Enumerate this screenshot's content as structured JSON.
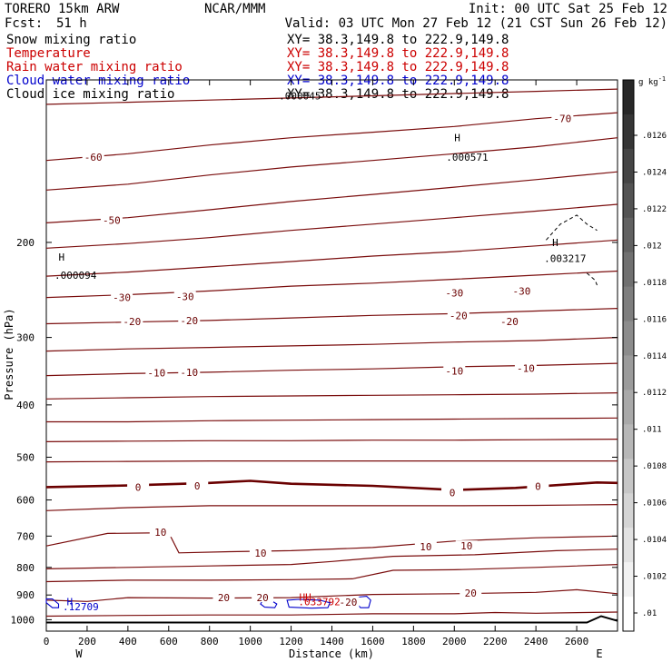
{
  "header": {
    "model": "TORERO   15km ARW",
    "fcst_label": "Fcst:",
    "fcst_value": "51 h",
    "org": "NCAR/MMM",
    "init": "Init: 00 UTC Sat 25 Feb 12",
    "valid": "Valid: 03 UTC Mon 27 Feb 12 (21 CST Sun 26 Feb 12)"
  },
  "legend": [
    {
      "name": "Snow mixing ratio",
      "color": "#000000",
      "xy": "XY=  38.3,149.8 to 222.9,149.8"
    },
    {
      "name": "Temperature",
      "color": "#cc0000",
      "xy": "XY=  38.3,149.8 to 222.9,149.8"
    },
    {
      "name": "Rain water mixing ratio",
      "color": "#cc0000",
      "xy": "XY=  38.3,149.8 to 222.9,149.8"
    },
    {
      "name": "Cloud water mixing ratio",
      "color": "#0000cc",
      "xy": "XY=  38.3,149.8 to 222.9,149.8"
    },
    {
      "name": "Cloud ice mixing ratio",
      "color": "#000000",
      "xy": "XY=  38.3,149.8 to 222.9,149.8"
    }
  ],
  "colors": {
    "temperature": "#7a0d0d",
    "zero_isotherm": "#6a0000",
    "cloud_water": "#0000cc",
    "terrain": "#000000"
  },
  "chart_data": {
    "type": "line",
    "xlabel": "Distance (km)",
    "ylabel": "Pressure (hPa)",
    "xlim": [
      0,
      2800
    ],
    "ylim": [
      1050,
      100
    ],
    "y_log": true,
    "x_ticks": [
      0,
      200,
      400,
      600,
      800,
      1000,
      1200,
      1400,
      1600,
      1800,
      2000,
      2200,
      2400,
      2600
    ],
    "y_ticks": [
      200,
      300,
      400,
      500,
      600,
      700,
      800,
      900,
      1000
    ],
    "x_end_labels": {
      "left": "W",
      "right": "E"
    },
    "colorbar": {
      "unit": "g kg",
      "unit_sup": "-1",
      "ticks": [
        ".0126",
        ".0124",
        ".0122",
        ".012",
        ".0118",
        ".0116",
        ".0114",
        ".0112",
        ".011",
        ".0108",
        ".0106",
        ".0104",
        ".0102",
        ".01"
      ]
    },
    "temperature_isotherms": [
      {
        "x": [
          0,
          400,
          800,
          1200,
          1600,
          2000,
          2400,
          2800
        ],
        "p": [
          111,
          110,
          109,
          108,
          107,
          106,
          105,
          104
        ]
      },
      {
        "x": [
          0,
          400,
          800,
          1200,
          1600,
          2000,
          2400,
          2800
        ],
        "p": [
          141,
          137,
          132,
          128,
          125,
          122,
          118,
          115
        ]
      },
      {
        "x": [
          0,
          400,
          800,
          1200,
          1600,
          2000,
          2400,
          2800
        ],
        "p": [
          160,
          156,
          150,
          145,
          141,
          137,
          133,
          128
        ]
      },
      {
        "x": [
          0,
          400,
          800,
          1200,
          1600,
          2000,
          2400,
          2800
        ],
        "p": [
          184,
          180,
          174,
          168,
          163,
          158,
          153,
          148
        ]
      },
      {
        "x": [
          0,
          400,
          800,
          1200,
          1600,
          2000,
          2400,
          2800
        ],
        "p": [
          205,
          201,
          196,
          190,
          185,
          180,
          175,
          170
        ]
      },
      {
        "x": [
          0,
          400,
          800,
          1200,
          1600,
          2000,
          2400,
          2800
        ],
        "p": [
          231,
          227,
          222,
          217,
          212,
          208,
          203,
          198
        ]
      },
      {
        "x": [
          0,
          400,
          800,
          1200,
          1600,
          2000,
          2400,
          2800
        ],
        "p": [
          253,
          250,
          246,
          241,
          238,
          234,
          230,
          226
        ]
      },
      {
        "x": [
          0,
          400,
          800,
          1200,
          1600,
          2000,
          2400,
          2800
        ],
        "p": [
          283,
          281,
          279,
          276,
          273,
          271,
          268,
          265
        ]
      },
      {
        "x": [
          0,
          400,
          800,
          1200,
          1600,
          2000,
          2400,
          2800
        ],
        "p": [
          318,
          315,
          313,
          311,
          309,
          306,
          304,
          300
        ]
      },
      {
        "x": [
          0,
          400,
          800,
          1200,
          1600,
          2000,
          2400,
          2800
        ],
        "p": [
          353,
          350,
          348,
          345,
          343,
          340,
          338,
          335
        ]
      },
      {
        "x": [
          0,
          400,
          800,
          1200,
          1600,
          2000,
          2400,
          2800
        ],
        "p": [
          390,
          388,
          386,
          385,
          384,
          383,
          382,
          380
        ]
      },
      {
        "x": [
          0,
          400,
          800,
          1200,
          1600,
          2000,
          2400,
          2800
        ],
        "p": [
          430,
          430,
          428,
          427,
          426,
          425,
          424,
          423
        ]
      },
      {
        "x": [
          0,
          400,
          800,
          1200,
          1600,
          2000,
          2400,
          2800
        ],
        "p": [
          468,
          467,
          466,
          466,
          465,
          465,
          464,
          463
        ]
      },
      {
        "x": [
          0,
          400,
          800,
          1200,
          1600,
          2000,
          2400,
          2800
        ],
        "p": [
          510,
          509,
          508,
          508,
          508,
          508,
          508,
          508
        ]
      },
      {
        "x": [
          0,
          400,
          800,
          1000,
          1200,
          1600,
          2000,
          2300,
          2700,
          2800
        ],
        "p": [
          568,
          564,
          558,
          553,
          560,
          565,
          575,
          570,
          557,
          558
        ],
        "zero": true
      },
      {
        "x": [
          0,
          400,
          800,
          1200,
          1600,
          2000,
          2400,
          2800
        ],
        "p": [
          628,
          620,
          615,
          615,
          615,
          615,
          614,
          612
        ]
      },
      {
        "x": [
          0,
          300,
          600,
          650,
          900,
          1200,
          1600,
          2000,
          2400,
          2800
        ],
        "p": [
          730,
          692,
          690,
          752,
          748,
          745,
          735,
          715,
          705,
          700
        ]
      },
      {
        "x": [
          0,
          400,
          800,
          1200,
          1400,
          1700,
          2100,
          2500,
          2800
        ],
        "p": [
          805,
          800,
          795,
          790,
          780,
          763,
          758,
          745,
          740
        ]
      },
      {
        "x": [
          0,
          400,
          800,
          1200,
          1500,
          1700,
          2000,
          2400,
          2800
        ],
        "p": [
          850,
          845,
          845,
          843,
          840,
          810,
          808,
          800,
          790
        ]
      },
      {
        "x": [
          0,
          200,
          400,
          800,
          1200,
          1600,
          2000,
          2400,
          2600,
          2800
        ],
        "p": [
          920,
          925,
          910,
          912,
          910,
          898,
          895,
          890,
          880,
          895
        ]
      },
      {
        "x": [
          0,
          400,
          800,
          1200,
          1600,
          2000,
          2200,
          2400,
          2800
        ],
        "p": [
          985,
          982,
          980,
          980,
          975,
          975,
          970,
          973,
          968
        ]
      }
    ],
    "temperature_labels": [
      {
        "text": "-70",
        "x": 2530,
        "p": 118
      },
      {
        "text": "-60",
        "x": 230,
        "p": 139
      },
      {
        "text": "-50",
        "x": 320,
        "p": 182
      },
      {
        "text": "-30",
        "x": 370,
        "p": 253
      },
      {
        "text": "-30",
        "x": 680,
        "p": 252
      },
      {
        "text": "-30",
        "x": 2000,
        "p": 248
      },
      {
        "text": "-30",
        "x": 2330,
        "p": 246
      },
      {
        "text": "-20",
        "x": 420,
        "p": 280
      },
      {
        "text": "-20",
        "x": 700,
        "p": 279
      },
      {
        "text": "-20",
        "x": 2020,
        "p": 273
      },
      {
        "text": "-20",
        "x": 2270,
        "p": 280
      },
      {
        "text": "-10",
        "x": 540,
        "p": 349
      },
      {
        "text": "-10",
        "x": 700,
        "p": 348
      },
      {
        "text": "-10",
        "x": 2000,
        "p": 346
      },
      {
        "text": "-10",
        "x": 2350,
        "p": 342
      },
      {
        "text": "0",
        "x": 450,
        "p": 568
      },
      {
        "text": "0",
        "x": 740,
        "p": 565
      },
      {
        "text": "0",
        "x": 1990,
        "p": 582
      },
      {
        "text": "0",
        "x": 2410,
        "p": 566
      },
      {
        "text": "10",
        "x": 560,
        "p": 689
      },
      {
        "text": "10",
        "x": 1050,
        "p": 752
      },
      {
        "text": "10",
        "x": 1860,
        "p": 732
      },
      {
        "text": "10",
        "x": 2060,
        "p": 730
      },
      {
        "text": "20",
        "x": 870,
        "p": 910
      },
      {
        "text": "20",
        "x": 1060,
        "p": 910
      },
      {
        "text": "20",
        "x": 2080,
        "p": 893
      },
      {
        "text": "-20",
        "x": 1480,
        "p": 928
      }
    ],
    "extrema_labels": [
      {
        "text": "H",
        "x": 2000,
        "p": 128,
        "color": "#000000"
      },
      {
        "text": ".000571",
        "x": 1960,
        "p": 139,
        "color": "#000000"
      },
      {
        "text": "H",
        "x": 60,
        "p": 213,
        "color": "#000000"
      },
      {
        "text": ".000094",
        "x": 40,
        "p": 230,
        "color": "#000000"
      },
      {
        "text": "H",
        "x": 2480,
        "p": 200,
        "color": "#000000"
      },
      {
        "text": ".003217",
        "x": 2440,
        "p": 214,
        "color": "#000000"
      },
      {
        "text": ".000045",
        "x": 1140,
        "p": 107,
        "color": "#000000"
      },
      {
        "text": "H",
        "x": 100,
        "p": 925,
        "color": "#0000cc"
      },
      {
        "text": ".12709",
        "x": 80,
        "p": 945,
        "color": "#0000cc"
      },
      {
        "text": "HH",
        "x": 1240,
        "p": 908,
        "color": "#cc0000"
      },
      {
        "text": ".033792",
        "x": 1235,
        "p": 925,
        "color": "#cc0000"
      }
    ],
    "cloud_water": [
      {
        "x": [
          0,
          30,
          60,
          60,
          30,
          0
        ],
        "p": [
          915,
          915,
          935,
          950,
          950,
          930
        ]
      },
      {
        "x": [
          1060,
          1100,
          1130,
          1120,
          1070,
          1050
        ],
        "p": [
          922,
          920,
          935,
          950,
          948,
          935
        ]
      },
      {
        "x": [
          1180,
          1240,
          1340,
          1390,
          1380,
          1300,
          1190
        ],
        "p": [
          920,
          917,
          920,
          930,
          950,
          952,
          948
        ]
      },
      {
        "x": [
          1530,
          1570,
          1590,
          1580,
          1540,
          1520
        ],
        "p": [
          908,
          905,
          920,
          950,
          950,
          930
        ]
      }
    ],
    "snow": [
      {
        "x": [
          2450,
          2520,
          2600,
          2650,
          2700
        ],
        "p": [
          198,
          185,
          178,
          185,
          190
        ]
      },
      {
        "x": [
          2650,
          2690,
          2700
        ],
        "p": [
          228,
          235,
          240
        ]
      }
    ],
    "terrain": {
      "x": [
        0,
        2650,
        2720,
        2800
      ],
      "p": [
        1012,
        1012,
        985,
        1005
      ]
    }
  }
}
